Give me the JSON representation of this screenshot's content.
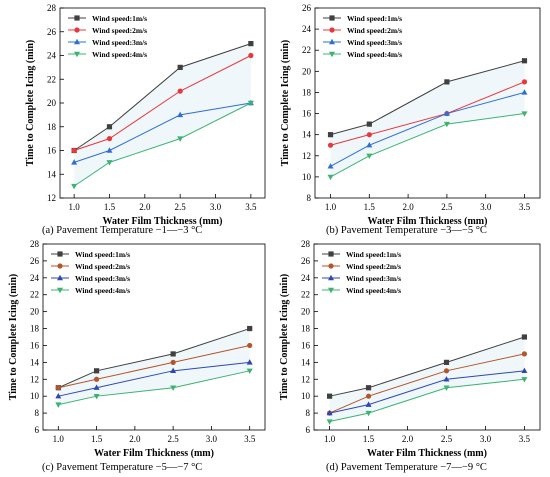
{
  "chart_data": [
    {
      "type": "line",
      "caption": "(a) Pavement Temperature −1—−3 °C",
      "xlabel": "Water Film Thickness (mm)",
      "ylabel": "Time to Complete Icing (min)",
      "x": [
        1.0,
        1.5,
        2.5,
        3.5
      ],
      "xlim": [
        0.8,
        3.7
      ],
      "xticks": [
        "1.0",
        "1.5",
        "2.0",
        "2.5",
        "3.0",
        "3.5"
      ],
      "ylim": [
        12,
        28
      ],
      "yticks": [
        "12",
        "14",
        "16",
        "18",
        "20",
        "22",
        "24",
        "26",
        "28"
      ],
      "legend_position": "top-left",
      "series": [
        {
          "name": "Wind speed:1m/s",
          "values": [
            16,
            18,
            23,
            25
          ]
        },
        {
          "name": "Wind speed:2m/s",
          "values": [
            16,
            17,
            21,
            24
          ]
        },
        {
          "name": "Wind speed:3m/s",
          "values": [
            15,
            16,
            19,
            20
          ]
        },
        {
          "name": "Wind speed:4m/s",
          "values": [
            13,
            15,
            17,
            20
          ]
        }
      ]
    },
    {
      "type": "line",
      "caption": "(b) Pavement Temperature −3—−5 °C",
      "xlabel": "Water Film Thickness (mm)",
      "ylabel": "Time to Complete Icing (min)",
      "x": [
        1.0,
        1.5,
        2.5,
        3.5
      ],
      "xlim": [
        0.8,
        3.7
      ],
      "xticks": [
        "1.0",
        "1.5",
        "2.0",
        "2.5",
        "3.0",
        "3.5"
      ],
      "ylim": [
        8,
        26
      ],
      "yticks": [
        "8",
        "10",
        "12",
        "14",
        "16",
        "18",
        "20",
        "22",
        "24",
        "26"
      ],
      "legend_position": "top-left",
      "series": [
        {
          "name": "Wind speed:1m/s",
          "values": [
            14,
            15,
            19,
            21
          ]
        },
        {
          "name": "Wind speed:2m/s",
          "values": [
            13,
            14,
            16,
            19
          ]
        },
        {
          "name": "Wind speed:3m/s",
          "values": [
            11,
            13,
            16,
            18
          ]
        },
        {
          "name": "Wind speed:4m/s",
          "values": [
            10,
            12,
            15,
            16
          ]
        }
      ]
    },
    {
      "type": "line",
      "caption": "(c) Pavement Temperature −5—−7 °C",
      "xlabel": "Water Film Thickness (mm)",
      "ylabel": "Time to Complete Icing (min)",
      "x": [
        1.0,
        1.5,
        2.5,
        3.5
      ],
      "xlim": [
        0.8,
        3.7
      ],
      "xticks": [
        "1.0",
        "1.5",
        "2.0",
        "2.5",
        "3.0",
        "3.5"
      ],
      "ylim": [
        6,
        28
      ],
      "yticks": [
        "6",
        "8",
        "10",
        "12",
        "14",
        "16",
        "18",
        "20",
        "22",
        "24",
        "26",
        "28"
      ],
      "legend_position": "top-left",
      "series": [
        {
          "name": "Wind speed:1m/s",
          "values": [
            11,
            13,
            15,
            18
          ]
        },
        {
          "name": "Wind speed:2m/s",
          "values": [
            11,
            12,
            14,
            16
          ]
        },
        {
          "name": "Wind speed:3m/s",
          "values": [
            10,
            11,
            13,
            14
          ]
        },
        {
          "name": "Wind speed:4m/s",
          "values": [
            9,
            10,
            11,
            13
          ]
        }
      ]
    },
    {
      "type": "line",
      "caption": "(d) Pavement Temperature −7—−9 °C",
      "xlabel": "Water Film Thickness (mm)",
      "ylabel": "Time to Complete Icing (min)",
      "x": [
        1.0,
        1.5,
        2.5,
        3.5
      ],
      "xlim": [
        0.8,
        3.7
      ],
      "xticks": [
        "1.0",
        "1.5",
        "2.0",
        "2.5",
        "3.0",
        "3.5"
      ],
      "ylim": [
        6,
        28
      ],
      "yticks": [
        "6",
        "8",
        "10",
        "12",
        "14",
        "16",
        "18",
        "20",
        "22",
        "24",
        "26",
        "28"
      ],
      "legend_position": "top-left",
      "series": [
        {
          "name": "Wind speed:1m/s",
          "values": [
            10,
            11,
            14,
            17
          ]
        },
        {
          "name": "Wind speed:2m/s",
          "values": [
            8,
            10,
            13,
            15
          ]
        },
        {
          "name": "Wind speed:3m/s",
          "values": [
            8,
            9,
            12,
            13
          ]
        },
        {
          "name": "Wind speed:4m/s",
          "values": [
            7,
            8,
            11,
            12
          ]
        }
      ]
    }
  ],
  "colors": {
    "panel_a_b": [
      "#404040",
      "#e8383d",
      "#2e6fd6",
      "#3cb371"
    ],
    "panel_c_d": [
      "#404040",
      "#b5562a",
      "#2d48b5",
      "#3cb371"
    ],
    "markers": [
      "square",
      "circle",
      "triangle-up",
      "triangle-down"
    ]
  }
}
